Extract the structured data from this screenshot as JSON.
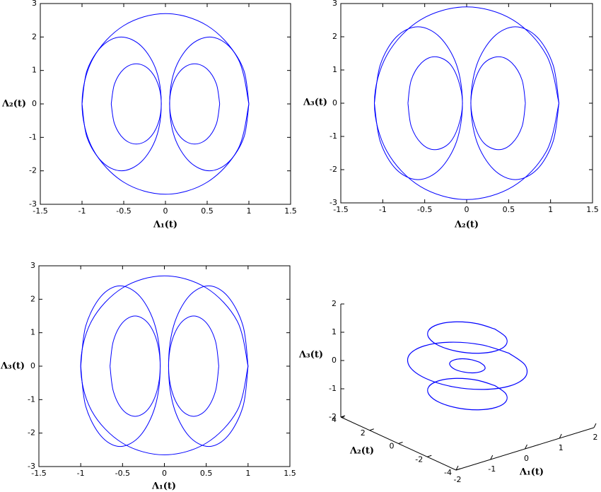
{
  "chart_data": [
    {
      "type": "line",
      "xlabel": "Λ₁(t)",
      "ylabel": "Λ₂(t)",
      "color": "#0000ff",
      "xlim": [
        -1.5,
        1.5
      ],
      "ylim": [
        -3,
        3
      ],
      "xticks": [
        -1.5,
        -1,
        -0.5,
        0,
        0.5,
        1,
        1.5
      ],
      "yticks": [
        -3,
        -2,
        -1,
        0,
        1,
        2,
        3
      ],
      "series": [
        {
          "x": [
            1,
            0.87,
            0.5,
            0,
            -0.5,
            -0.87,
            -1,
            -0.87,
            -0.5,
            0,
            0.5,
            0.87,
            1
          ],
          "values": [
            0,
            1.35,
            2.34,
            2.7,
            2.34,
            1.35,
            0,
            -1.35,
            -2.34,
            -2.7,
            -2.34,
            -1.35,
            0
          ]
        },
        {
          "x": [
            1,
            0.94,
            0.76,
            0.53,
            0.29,
            0.11,
            0.05,
            0.11,
            0.29,
            0.53,
            0.76,
            0.94,
            1
          ],
          "values": [
            0,
            1,
            1.73,
            2,
            1.73,
            1,
            0,
            -1,
            -1.73,
            -2,
            -1.73,
            -1,
            0
          ]
        },
        {
          "x": [
            -1,
            -0.94,
            -0.76,
            -0.53,
            -0.29,
            -0.11,
            -0.05,
            -0.11,
            -0.29,
            -0.53,
            -0.76,
            -0.94,
            -1
          ],
          "values": [
            0,
            1,
            1.73,
            2,
            1.73,
            1,
            0,
            -1,
            -1.73,
            -2,
            -1.73,
            -1,
            0
          ]
        },
        {
          "x": [
            0.65,
            0.61,
            0.5,
            0.35,
            0.2,
            0.09,
            0.05,
            0.09,
            0.2,
            0.35,
            0.5,
            0.61,
            0.65
          ],
          "values": [
            0,
            0.6,
            1.04,
            1.2,
            1.04,
            0.6,
            0,
            -0.6,
            -1.04,
            -1.2,
            -1.04,
            -0.6,
            0
          ]
        },
        {
          "x": [
            -0.65,
            -0.61,
            -0.5,
            -0.35,
            -0.2,
            -0.09,
            -0.05,
            -0.09,
            -0.2,
            -0.35,
            -0.5,
            -0.61,
            -0.65
          ],
          "values": [
            0,
            0.6,
            1.04,
            1.2,
            1.04,
            0.6,
            0,
            -0.6,
            -1.04,
            -1.2,
            -1.04,
            -0.6,
            0
          ]
        }
      ]
    },
    {
      "type": "line",
      "xlabel": "Λ₂(t)",
      "ylabel": "Λ₃(t)",
      "color": "#0000ff",
      "xlim": [
        -1.5,
        1.5
      ],
      "ylim": [
        -3,
        3
      ],
      "xticks": [
        -1.5,
        -1,
        -0.5,
        0,
        0.5,
        1,
        1.5
      ],
      "yticks": [
        -3,
        -2,
        -1,
        0,
        1,
        2,
        3
      ],
      "series": [
        {
          "x": [
            1.1,
            0.95,
            0.55,
            0,
            -0.55,
            -0.95,
            -1.1,
            -0.95,
            -0.55,
            0,
            0.55,
            0.95,
            1.1
          ],
          "values": [
            0,
            1.45,
            2.51,
            2.9,
            2.51,
            1.45,
            0,
            -1.45,
            -2.51,
            -2.9,
            -2.51,
            -1.45,
            0
          ]
        },
        {
          "x": [
            1.1,
            1.03,
            0.84,
            0.58,
            0.32,
            0.12,
            0.05,
            0.12,
            0.32,
            0.58,
            0.84,
            1.03,
            1.1
          ],
          "values": [
            0,
            1.15,
            1.99,
            2.3,
            1.99,
            1.15,
            0,
            -1.15,
            -1.99,
            -2.3,
            -1.99,
            -1.15,
            0
          ]
        },
        {
          "x": [
            -1.1,
            -1.03,
            -0.84,
            -0.58,
            -0.32,
            -0.12,
            -0.05,
            -0.12,
            -0.32,
            -0.58,
            -0.84,
            -1.03,
            -1.1
          ],
          "values": [
            0,
            1.15,
            1.99,
            2.3,
            1.99,
            1.15,
            0,
            -1.15,
            -1.99,
            -2.3,
            -1.99,
            -1.15,
            0
          ]
        },
        {
          "x": [
            0.7,
            0.66,
            0.54,
            0.38,
            0.21,
            0.1,
            0.05,
            0.1,
            0.21,
            0.38,
            0.54,
            0.66,
            0.7
          ],
          "values": [
            0,
            0.7,
            1.21,
            1.4,
            1.21,
            0.7,
            0,
            -0.7,
            -1.21,
            -1.4,
            -1.21,
            -0.7,
            0
          ]
        },
        {
          "x": [
            -0.7,
            -0.66,
            -0.54,
            -0.38,
            -0.21,
            -0.1,
            -0.05,
            -0.1,
            -0.21,
            -0.38,
            -0.54,
            -0.66,
            -0.7
          ],
          "values": [
            0,
            0.7,
            1.21,
            1.4,
            1.21,
            0.7,
            0,
            -0.7,
            -1.21,
            -1.4,
            -1.21,
            -0.7,
            0
          ]
        }
      ]
    },
    {
      "type": "line",
      "xlabel": "Λ₁(t)",
      "ylabel": "Λ₃(t)",
      "color": "#0000ff",
      "xlim": [
        -1.5,
        1.5
      ],
      "ylim": [
        -3,
        3
      ],
      "xticks": [
        -1.5,
        -1,
        -0.5,
        0,
        0.5,
        1,
        1.5
      ],
      "yticks": [
        -3,
        -2,
        -1,
        0,
        1,
        2,
        3
      ],
      "series": [
        {
          "x": [
            1,
            0.87,
            0.5,
            0,
            -0.5,
            -0.87,
            -1,
            -0.87,
            -0.5,
            0,
            0.5,
            0.87,
            1
          ],
          "values": [
            0,
            1.35,
            2.34,
            2.7,
            2.34,
            1.35,
            0,
            -1.33,
            -2.3,
            -2.65,
            -2.3,
            -1.33,
            0
          ]
        },
        {
          "x": [
            1,
            0.94,
            0.76,
            0.53,
            0.29,
            0.11,
            0.05,
            0.11,
            0.29,
            0.53,
            0.76,
            0.94,
            1
          ],
          "values": [
            0,
            1.2,
            2.08,
            2.4,
            2.08,
            1.2,
            0,
            -1.2,
            -2.08,
            -2.4,
            -2.08,
            -1.2,
            0
          ]
        },
        {
          "x": [
            -1,
            -0.94,
            -0.76,
            -0.53,
            -0.29,
            -0.11,
            -0.05,
            -0.11,
            -0.29,
            -0.53,
            -0.76,
            -0.94,
            -1
          ],
          "values": [
            0,
            1.2,
            2.08,
            2.4,
            2.08,
            1.2,
            0,
            -1.2,
            -2.08,
            -2.4,
            -2.08,
            -1.2,
            0
          ]
        },
        {
          "x": [
            0.65,
            0.61,
            0.5,
            0.35,
            0.2,
            0.09,
            0.05,
            0.09,
            0.2,
            0.35,
            0.5,
            0.61,
            0.65
          ],
          "values": [
            0,
            0.75,
            1.3,
            1.5,
            1.3,
            0.75,
            0,
            -0.75,
            -1.3,
            -1.5,
            -1.3,
            -0.75,
            0
          ]
        },
        {
          "x": [
            -0.65,
            -0.61,
            -0.5,
            -0.35,
            -0.2,
            -0.09,
            -0.05,
            -0.09,
            -0.2,
            -0.35,
            -0.5,
            -0.61,
            -0.65
          ],
          "values": [
            0,
            0.75,
            1.3,
            1.5,
            1.3,
            0.75,
            0,
            -0.75,
            -1.3,
            -1.5,
            -1.3,
            -0.75,
            0
          ]
        }
      ]
    },
    {
      "type": "line3d",
      "xlabel": "Λ₁(t)",
      "ylabel": "Λ₂(t)",
      "zlabel": "Λ₃(t)",
      "color": "#0000ff",
      "xlim": [
        -2,
        2
      ],
      "ylim": [
        -4,
        4
      ],
      "zlim": [
        -2,
        2
      ],
      "xticks": [
        -2,
        -1,
        0,
        1,
        2
      ],
      "yticks": [
        -4,
        -2,
        0,
        2,
        4
      ],
      "zticks": [
        -2,
        -1,
        0,
        1,
        2
      ],
      "series": [
        {
          "x": [
            1.2,
            1.04,
            0.6,
            0,
            -0.6,
            -1.04,
            -1.2,
            -1.04,
            -0.6,
            0,
            0.6,
            1.04,
            1.2
          ],
          "y": [
            0,
            1.5,
            2.6,
            3,
            2.6,
            1.5,
            0,
            -1.5,
            -2.6,
            -3,
            -2.6,
            -1.5,
            0
          ],
          "values": [
            0,
            0,
            0,
            0,
            0,
            0,
            0,
            0,
            0,
            0,
            0,
            0,
            0
          ]
        },
        {
          "x": [
            0.35,
            0.3,
            0.18,
            0,
            -0.18,
            -0.3,
            -0.35,
            -0.3,
            -0.18,
            0,
            0.18,
            0.3,
            0.35
          ],
          "y": [
            0,
            0.45,
            0.78,
            0.9,
            0.78,
            0.45,
            0,
            -0.45,
            -0.78,
            -0.9,
            -0.78,
            -0.45,
            0
          ],
          "values": [
            0,
            0,
            0,
            0,
            0,
            0,
            0,
            0,
            0,
            0,
            0,
            0,
            0
          ]
        },
        {
          "x": [
            0.8,
            0.69,
            0.4,
            0,
            -0.4,
            -0.69,
            -0.8,
            -0.69,
            -0.4,
            0,
            0.4,
            0.69,
            0.8
          ],
          "y": [
            0,
            1,
            1.73,
            2,
            1.73,
            1,
            0,
            -1,
            -1.73,
            -2,
            -1.73,
            -1,
            0
          ],
          "values": [
            1,
            1,
            1,
            1,
            1,
            1,
            1,
            1,
            1,
            1,
            1,
            1,
            1
          ]
        },
        {
          "x": [
            0.8,
            0.69,
            0.4,
            0,
            -0.4,
            -0.69,
            -0.8,
            -0.69,
            -0.4,
            0,
            0.4,
            0.69,
            0.8
          ],
          "y": [
            0,
            1,
            1.73,
            2,
            1.73,
            1,
            0,
            -1,
            -1.73,
            -2,
            -1.73,
            -1,
            0
          ],
          "values": [
            -1,
            -1,
            -1,
            -1,
            -1,
            -1,
            -1,
            -1,
            -1,
            -1,
            -1,
            -1,
            -1
          ]
        }
      ]
    }
  ]
}
